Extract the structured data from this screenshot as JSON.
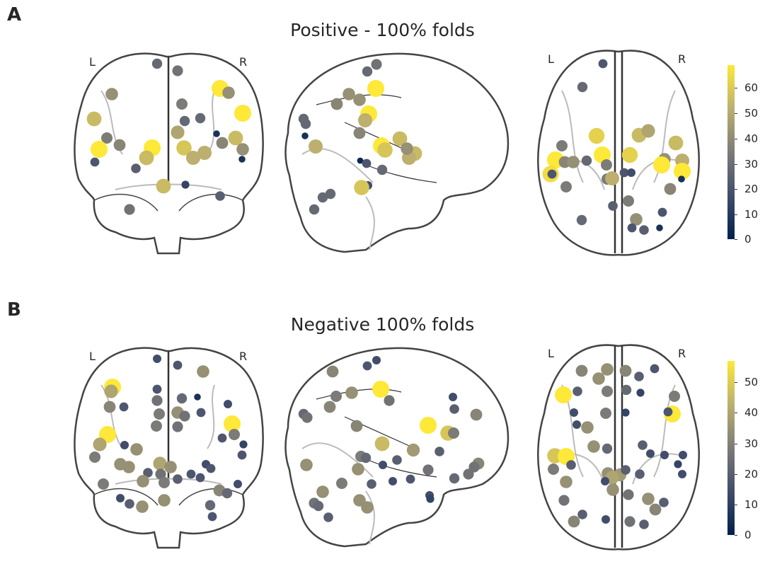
{
  "panels": [
    {
      "letter": "A",
      "title": "Positive - 100% folds",
      "left_label": "L",
      "right_label": "R",
      "colorbar_ticks": [
        "0",
        "10",
        "20",
        "30",
        "40",
        "50",
        "60"
      ],
      "colorbar_range": [
        0,
        68
      ]
    },
    {
      "letter": "B",
      "title": "Negative 100% folds",
      "left_label": "L",
      "right_label": "R",
      "colorbar_ticks": [
        "0",
        "10",
        "20",
        "30",
        "40",
        "50"
      ],
      "colorbar_range": [
        0,
        56
      ]
    }
  ],
  "colormap": "cividis",
  "colors": {
    "low": "#00204c",
    "mid": "#7c7b78",
    "high": "#fee838",
    "outline": "#444444"
  }
}
